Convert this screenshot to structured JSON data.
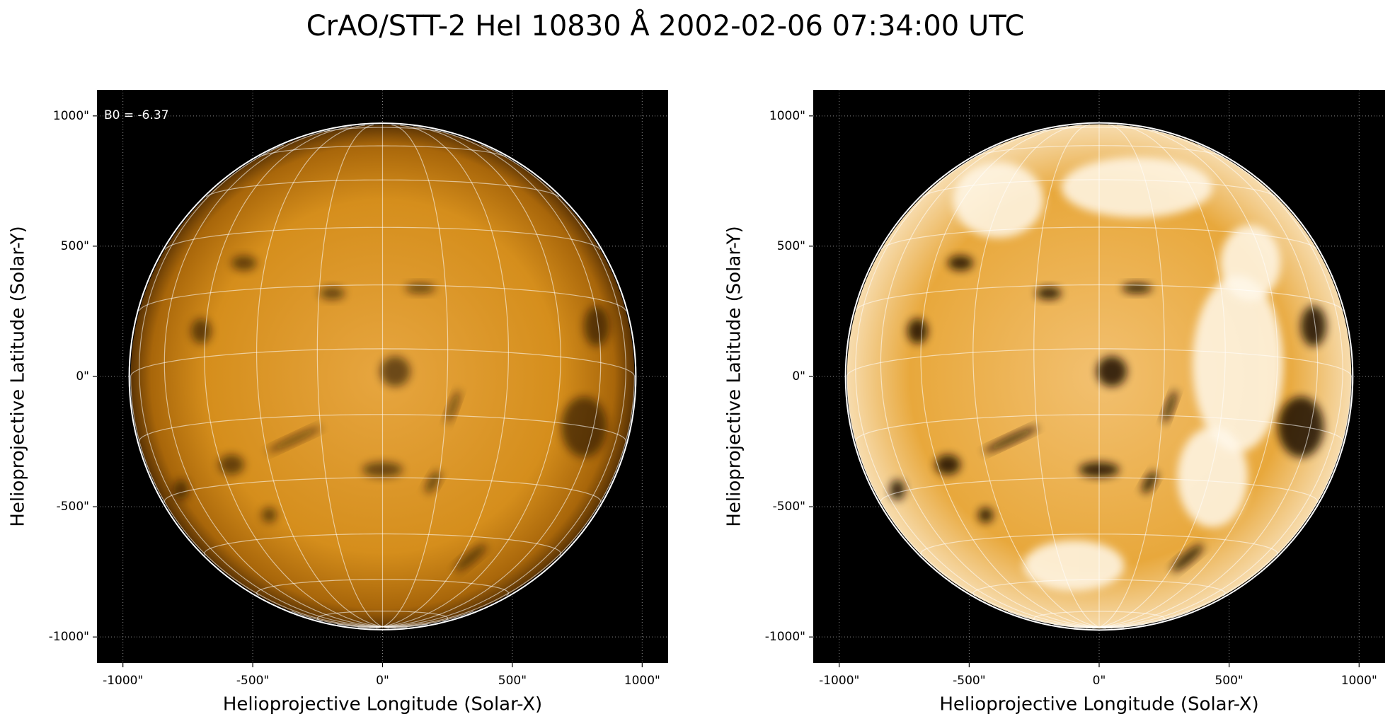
{
  "title": "CrAO/STT-2 HeI 10830 Å 2002-02-06 07:34:00 UTC",
  "chart_data": [
    {
      "type": "image",
      "xlabel": "Helioprojective Longitude (Solar-X)",
      "ylabel": "Helioprojective Latitude (Solar-Y)",
      "annotation": "B0 = -6.37",
      "xlim": [
        -1100,
        1100
      ],
      "ylim": [
        -1100,
        1100
      ],
      "xticks": [
        {
          "value": -1000,
          "label": "-1000\""
        },
        {
          "value": -500,
          "label": "-500\""
        },
        {
          "value": 0,
          "label": "0\""
        },
        {
          "value": 500,
          "label": "500\""
        },
        {
          "value": 1000,
          "label": "1000\""
        }
      ],
      "yticks": [
        {
          "value": -1000,
          "label": "-1000\""
        },
        {
          "value": -500,
          "label": "-500\""
        },
        {
          "value": 0,
          "label": "0\""
        },
        {
          "value": 500,
          "label": "500\""
        },
        {
          "value": 1000,
          "label": "1000\""
        }
      ],
      "grid": true,
      "color": "#d08a10"
    },
    {
      "type": "image",
      "xlabel": "Helioprojective Longitude (Solar-X)",
      "ylabel": "Helioprojective Latitude (Solar-Y)",
      "xlim": [
        -1100,
        1100
      ],
      "ylim": [
        -1100,
        1100
      ],
      "xticks": [
        {
          "value": -1000,
          "label": "-1000\""
        },
        {
          "value": -500,
          "label": "-500\""
        },
        {
          "value": 0,
          "label": "0\""
        },
        {
          "value": 500,
          "label": "500\""
        },
        {
          "value": 1000,
          "label": "1000\""
        }
      ],
      "yticks": [
        {
          "value": -1000,
          "label": "-1000\""
        },
        {
          "value": -500,
          "label": "-500\""
        },
        {
          "value": 0,
          "label": "0\""
        },
        {
          "value": 500,
          "label": "500\""
        },
        {
          "value": 1000,
          "label": "1000\""
        }
      ],
      "grid": true,
      "color": "#e09a20"
    }
  ]
}
